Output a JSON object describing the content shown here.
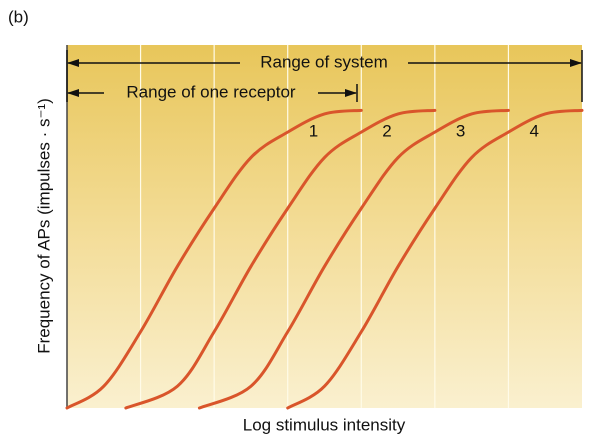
{
  "chart_data": {
    "type": "line",
    "title": "(b)",
    "xlabel": "Log stimulus intensity",
    "ylabel": "Frequency of APs (impulses · s⁻¹)",
    "xlim": [
      0,
      7
    ],
    "ylim": [
      0,
      100
    ],
    "x_gridlines": [
      1,
      2,
      3,
      4,
      5,
      6
    ],
    "annotations": [
      "Range of system",
      "Range of one receptor"
    ],
    "series": [
      {
        "name": "1",
        "color": "#d9552b",
        "x": [
          0,
          0.5,
          1,
          1.5,
          2,
          2.5,
          3,
          3.5,
          4
        ],
        "values": [
          0,
          6,
          21,
          39,
          55,
          69,
          76,
          81,
          82
        ]
      },
      {
        "name": "2",
        "color": "#d9552b",
        "x": [
          0.8,
          1.5,
          2,
          2.5,
          3,
          3.5,
          4,
          4.5,
          5
        ],
        "values": [
          0,
          6,
          21,
          39,
          55,
          69,
          76,
          81,
          82
        ]
      },
      {
        "name": "3",
        "color": "#d9552b",
        "x": [
          1.8,
          2.5,
          3,
          3.5,
          4,
          4.5,
          5,
          5.5,
          6
        ],
        "values": [
          0,
          6,
          21,
          39,
          55,
          69,
          76,
          81,
          82
        ]
      },
      {
        "name": "4",
        "color": "#d9552b",
        "x": [
          3,
          3.5,
          4,
          4.5,
          5,
          5.5,
          6,
          6.5,
          7
        ],
        "values": [
          0,
          6,
          21,
          39,
          55,
          69,
          76,
          81,
          82
        ]
      }
    ]
  }
}
